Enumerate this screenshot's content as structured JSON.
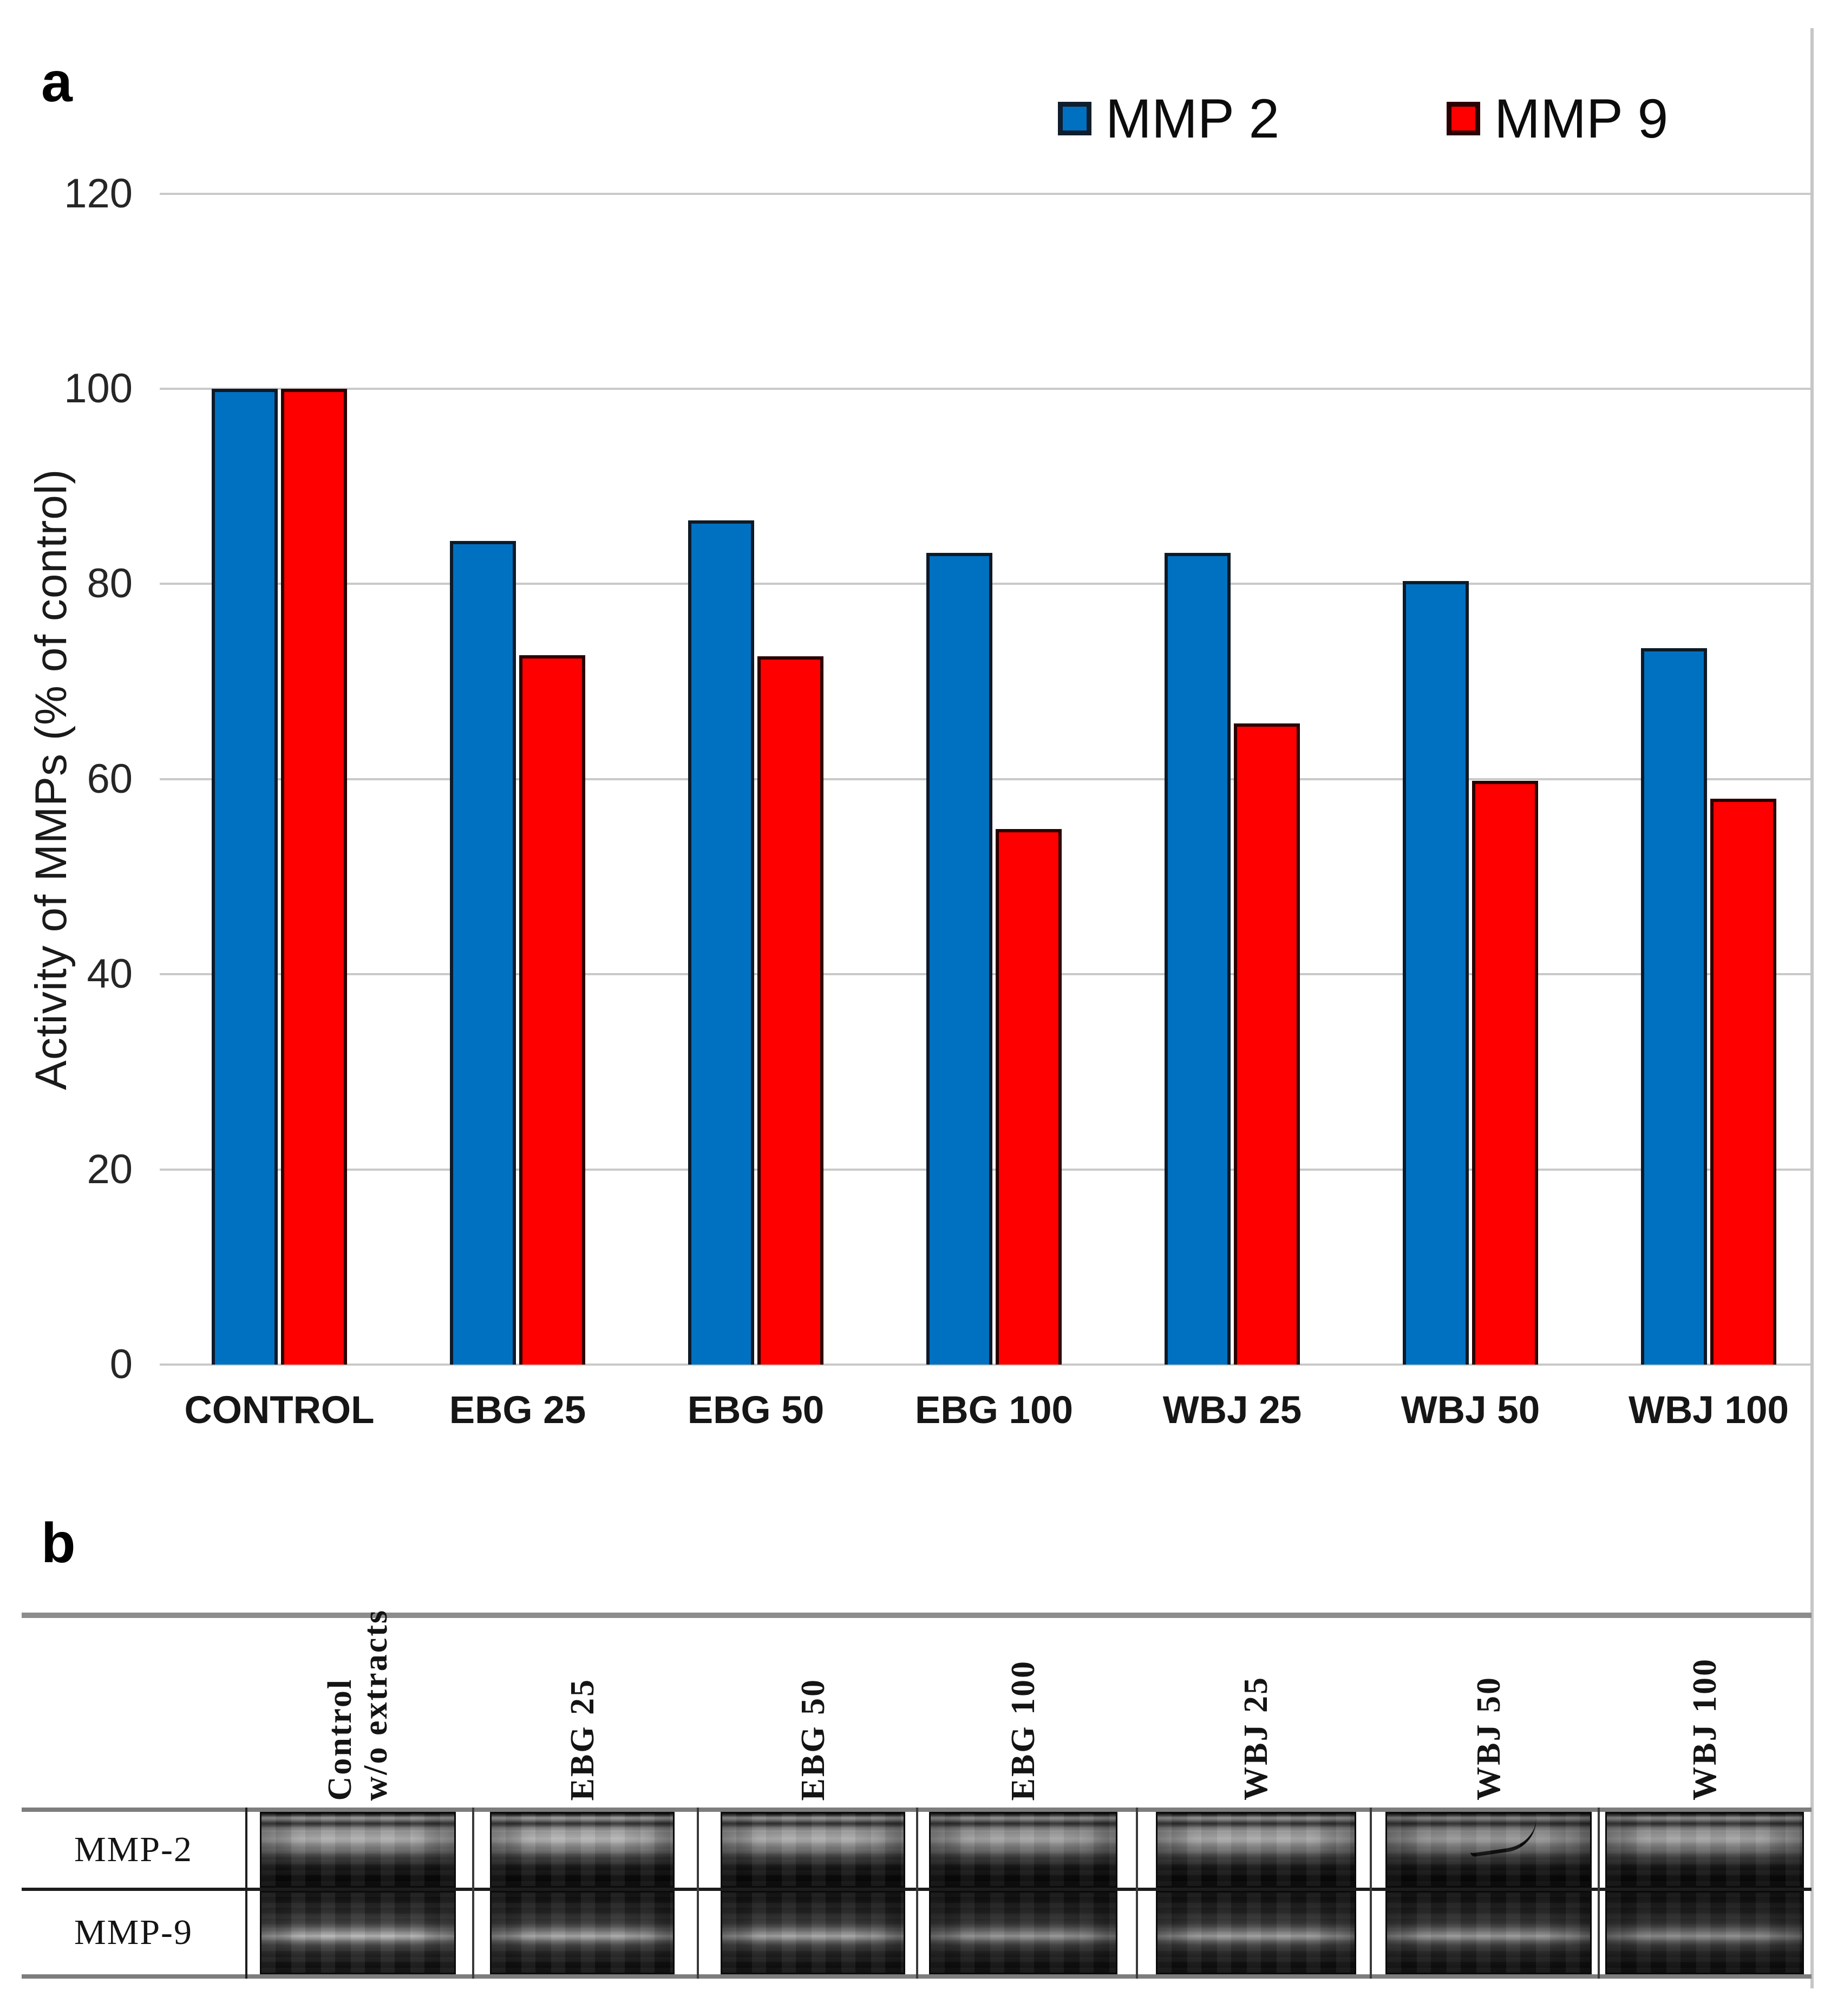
{
  "figure": {
    "panel_a_label": "a",
    "panel_b_label": "b"
  },
  "chart_data": {
    "type": "bar",
    "title": "",
    "xlabel": "",
    "ylabel": "Activity of MMPs (% of control)",
    "categories": [
      "CONTROL",
      "EBG 25",
      "EBG 50",
      "EBG 100",
      "WBJ 25",
      "WBJ 50",
      "WBJ 100"
    ],
    "series": [
      {
        "name": "MMP 2",
        "color": "#0071c1",
        "values": [
          100,
          84.4,
          86.5,
          83.2,
          83.2,
          80.3,
          73.4
        ]
      },
      {
        "name": "MMP 9",
        "color": "#fe0000",
        "values": [
          100,
          72.7,
          72.6,
          54.9,
          65.7,
          59.8,
          58.0
        ]
      }
    ],
    "ylim": [
      0,
      120
    ],
    "yticks": [
      0,
      20,
      40,
      60,
      80,
      100,
      120
    ],
    "grid": true,
    "gridline_color": "#c9c9c9",
    "legend_position": "top-right"
  },
  "gel": {
    "row_labels": [
      "MMP-2",
      "MMP-9"
    ],
    "lane_labels": [
      [
        "Control",
        "w/o extracts"
      ],
      [
        "EBG 25"
      ],
      [
        "EBG 50"
      ],
      [
        "EBG 100"
      ],
      [
        "WBJ 25"
      ],
      [
        "WBJ 50"
      ],
      [
        "WBJ 100"
      ]
    ]
  }
}
